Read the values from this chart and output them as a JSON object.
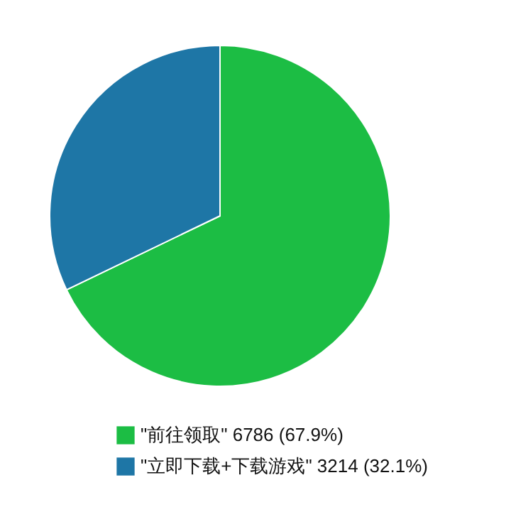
{
  "chart_data": {
    "type": "pie",
    "categories": [
      "\"前往领取\"",
      "\"立即下载+下载游戏\""
    ],
    "values": [
      6786,
      3214
    ],
    "value_labels": [
      "6786 (67.9%)",
      "3214 (32.1%)"
    ],
    "colors": [
      "#1cbd44",
      "#1e76a6"
    ],
    "legend": "bottom"
  }
}
